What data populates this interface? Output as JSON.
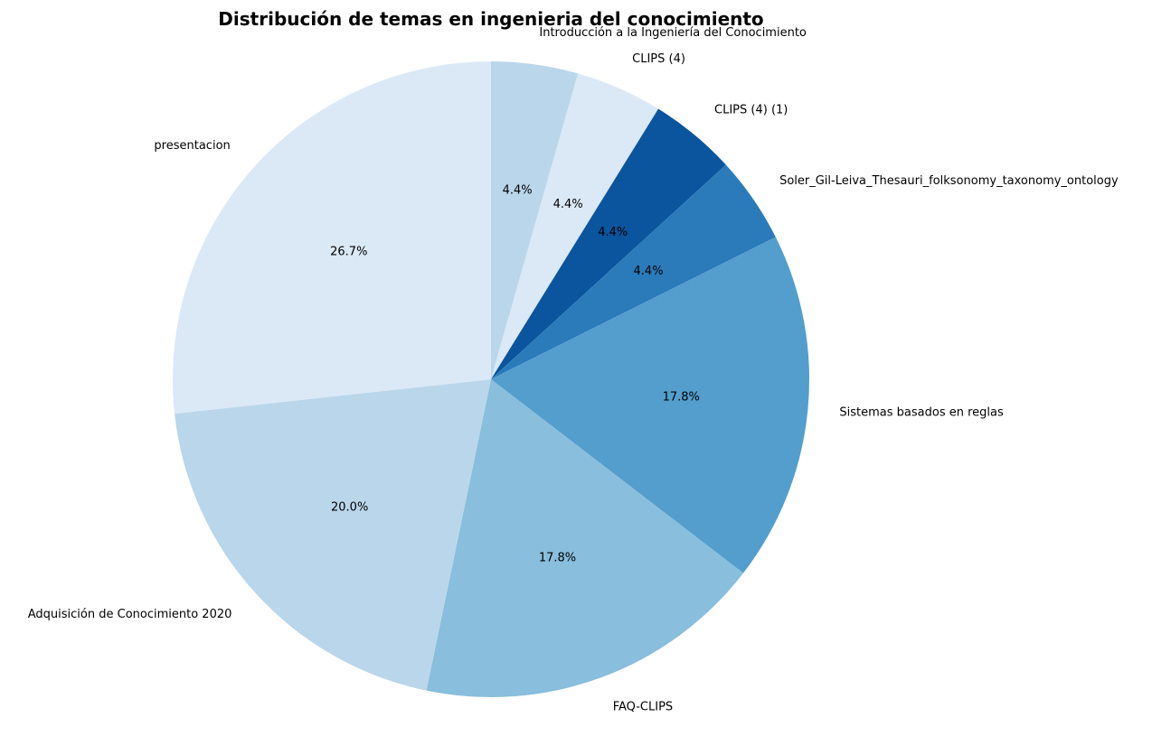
{
  "chart_data": {
    "type": "pie",
    "title": "Distribución de temas en ingenieria del conocimiento",
    "slices": [
      {
        "label": "Introducción a la Ingeniería del Conocimiento",
        "value": 4.4,
        "pct_label": "4.4%",
        "color": "#bad6eb"
      },
      {
        "label": "CLIPS (4)",
        "value": 4.4,
        "pct_label": "4.4%",
        "color": "#dbe9f6"
      },
      {
        "label": "CLIPS (4) (1)",
        "value": 4.4,
        "pct_label": "4.4%",
        "color": "#0b559f"
      },
      {
        "label": "Soler_Gil-Leiva_Thesauri_folksonomy_taxonomy_ontology",
        "value": 4.4,
        "pct_label": "4.4%",
        "color": "#2b7bba"
      },
      {
        "label": "Sistemas basados en reglas",
        "value": 17.8,
        "pct_label": "17.8%",
        "color": "#539ecd"
      },
      {
        "label": "FAQ-CLIPS",
        "value": 17.8,
        "pct_label": "17.8%",
        "color": "#89bedc"
      },
      {
        "label": "Adquisición de  Conocimiento 2020",
        "value": 20.0,
        "pct_label": "20.0%",
        "color": "#bad6eb"
      },
      {
        "label": "presentacion",
        "value": 26.7,
        "pct_label": "26.7%",
        "color": "#dbe9f6"
      }
    ],
    "start_angle": 90,
    "direction": "clockwise"
  }
}
